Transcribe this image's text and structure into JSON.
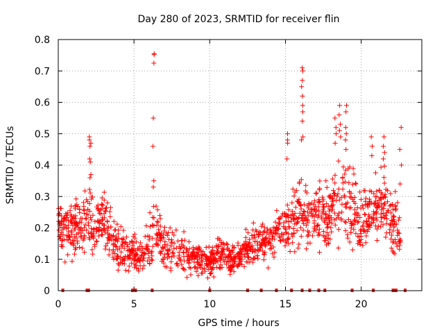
{
  "chart_data": {
    "type": "scatter",
    "title": "Day 280 of 2023, SRMTID for receiver flin",
    "xlabel": "GPS time / hours",
    "ylabel": "SRMTID / TECUs",
    "xlim": [
      0,
      24
    ],
    "ylim": [
      0,
      0.8
    ],
    "xticks": [
      0,
      5,
      10,
      15,
      20
    ],
    "yticks": [
      0,
      0.1,
      0.2,
      0.3,
      0.4,
      0.5,
      0.6,
      0.7,
      0.8
    ],
    "xtick_labels": [
      "0",
      "5",
      "10",
      "15",
      "20"
    ],
    "ytick_labels": [
      "0",
      "0.1",
      "0.2",
      "0.3",
      "0.4",
      "0.5",
      "0.6",
      "0.7",
      "0.8"
    ],
    "grid": true,
    "marker": "+",
    "color": "#ff0000",
    "trend": [
      [
        0.0,
        0.22,
        0.05
      ],
      [
        0.5,
        0.2,
        0.06
      ],
      [
        1.0,
        0.2,
        0.06
      ],
      [
        1.5,
        0.21,
        0.06
      ],
      [
        2.0,
        0.24,
        0.07
      ],
      [
        2.5,
        0.21,
        0.06
      ],
      [
        3.0,
        0.24,
        0.07
      ],
      [
        3.5,
        0.16,
        0.05
      ],
      [
        4.0,
        0.14,
        0.05
      ],
      [
        4.5,
        0.12,
        0.04
      ],
      [
        5.0,
        0.12,
        0.04
      ],
      [
        5.5,
        0.11,
        0.04
      ],
      [
        6.0,
        0.15,
        0.06
      ],
      [
        6.5,
        0.18,
        0.06
      ],
      [
        7.0,
        0.14,
        0.05
      ],
      [
        7.5,
        0.13,
        0.05
      ],
      [
        8.0,
        0.12,
        0.05
      ],
      [
        8.5,
        0.12,
        0.05
      ],
      [
        9.0,
        0.11,
        0.04
      ],
      [
        9.5,
        0.09,
        0.03
      ],
      [
        10.0,
        0.09,
        0.03
      ],
      [
        10.5,
        0.12,
        0.04
      ],
      [
        11.0,
        0.11,
        0.04
      ],
      [
        11.5,
        0.09,
        0.03
      ],
      [
        12.0,
        0.11,
        0.03
      ],
      [
        12.5,
        0.14,
        0.04
      ],
      [
        13.0,
        0.14,
        0.04
      ],
      [
        13.5,
        0.15,
        0.04
      ],
      [
        14.0,
        0.16,
        0.04
      ],
      [
        14.5,
        0.19,
        0.05
      ],
      [
        15.0,
        0.21,
        0.05
      ],
      [
        15.5,
        0.22,
        0.06
      ],
      [
        16.0,
        0.25,
        0.07
      ],
      [
        16.5,
        0.22,
        0.07
      ],
      [
        17.0,
        0.25,
        0.08
      ],
      [
        17.5,
        0.26,
        0.08
      ],
      [
        18.0,
        0.27,
        0.09
      ],
      [
        18.5,
        0.29,
        0.1
      ],
      [
        19.0,
        0.3,
        0.1
      ],
      [
        19.5,
        0.25,
        0.07
      ],
      [
        20.0,
        0.22,
        0.06
      ],
      [
        20.5,
        0.24,
        0.07
      ],
      [
        21.0,
        0.26,
        0.07
      ],
      [
        21.5,
        0.28,
        0.08
      ],
      [
        22.0,
        0.22,
        0.07
      ],
      [
        22.6,
        0.16,
        0.06
      ]
    ],
    "spikes": [
      {
        "x": 2.1,
        "ys": [
          0.49,
          0.48,
          0.47,
          0.46,
          0.42,
          0.41,
          0.37,
          0.36
        ]
      },
      {
        "x": 6.3,
        "ys": [
          0.755,
          0.752,
          0.725,
          0.55,
          0.46,
          0.35,
          0.33
        ]
      },
      {
        "x": 15.1,
        "ys": [
          0.5,
          0.48,
          0.47,
          0.42
        ]
      },
      {
        "x": 16.1,
        "ys": [
          0.71,
          0.7,
          0.67,
          0.65,
          0.62,
          0.59,
          0.57,
          0.54,
          0.49,
          0.48
        ]
      },
      {
        "x": 18.3,
        "ys": [
          0.55,
          0.52,
          0.5,
          0.47
        ]
      },
      {
        "x": 18.6,
        "ys": [
          0.59,
          0.56,
          0.53,
          0.51,
          0.49
        ]
      },
      {
        "x": 19.0,
        "ys": [
          0.59,
          0.57,
          0.52,
          0.5,
          0.48,
          0.45
        ]
      },
      {
        "x": 20.7,
        "ys": [
          0.49,
          0.46,
          0.43
        ]
      },
      {
        "x": 21.5,
        "ys": [
          0.49,
          0.46,
          0.44,
          0.42
        ]
      },
      {
        "x": 22.6,
        "ys": [
          0.52,
          0.45,
          0.4,
          0.34
        ]
      }
    ],
    "baseline_markers_x": [
      0.3,
      1.9,
      2.0,
      4.9,
      5.1,
      6.2,
      10.0,
      12.5,
      13.4,
      14.4,
      15.4,
      16.1,
      16.6,
      17.2,
      17.6,
      19.4,
      20.8,
      22.1,
      22.2,
      22.3,
      22.9
    ]
  }
}
